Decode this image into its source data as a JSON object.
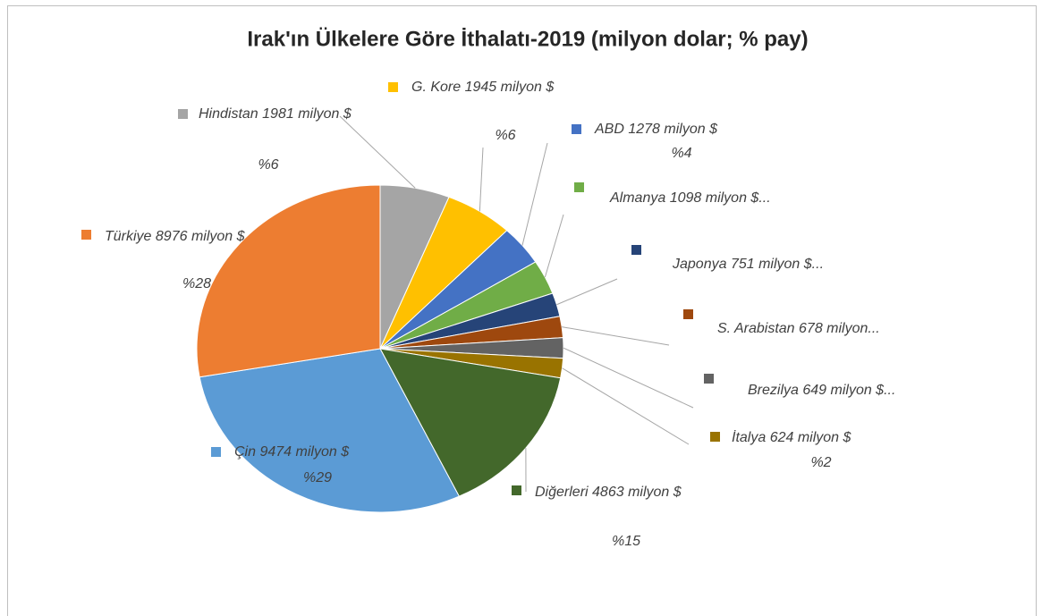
{
  "chart_data": {
    "type": "pie",
    "title": "Irak'ın Ülkelere Göre İthalatı-2019 (milyon dolar; % pay)",
    "categories": [
      "Hindistan",
      "G. Kore",
      "ABD",
      "Almanya",
      "Japonya",
      "S. Arabistan",
      "Brezilya",
      "İtalya",
      "Diğerleri",
      "Çin",
      "Türkiye"
    ],
    "values": [
      1981,
      1945,
      1278,
      1098,
      751,
      678,
      649,
      624,
      4863,
      9474,
      8976
    ],
    "value_labels": [
      "1981 milyon $",
      "1945 milyon $",
      "1278 milyon $",
      "1098 milyon $...",
      "751 milyon $...",
      "678 milyon...",
      "649 milyon $...",
      "624 milyon $",
      "4863 milyon $",
      "9474 milyon $",
      "8976 milyon $"
    ],
    "percent_labels": [
      "%6",
      "%6",
      "%4",
      null,
      null,
      null,
      null,
      "%2",
      "%15",
      "%29",
      "%28"
    ],
    "colors": [
      "#a5a5a5",
      "#ffc000",
      "#4472c4",
      "#70ad47",
      "#264478",
      "#9e480e",
      "#636363",
      "#997300",
      "#43682b",
      "#5b9bd5",
      "#ed7d31"
    ]
  }
}
